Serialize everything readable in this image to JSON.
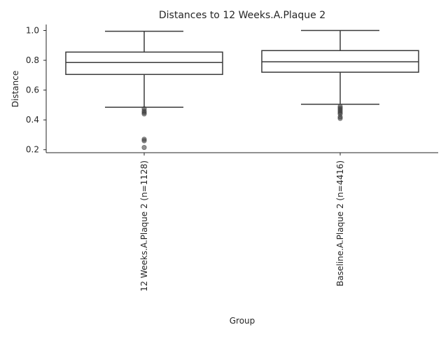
{
  "chart_data": {
    "type": "box",
    "title": "Distances to 12 Weeks.A.Plaque 2",
    "xlabel": "Group",
    "ylabel": "Distance",
    "ylim": [
      0.18,
      1.04
    ],
    "y_ticks": [
      "0.2",
      "0.4",
      "0.6",
      "0.8",
      "1.0"
    ],
    "y_tick_values": [
      0.2,
      0.4,
      0.6,
      0.8,
      1.0
    ],
    "grid": false,
    "categories": [
      "12 Weeks.A.Plaque 2 (n=1128)",
      "Baseline.A.Plaque 2 (n=4416)"
    ],
    "boxes": [
      {
        "whisker_low": 0.485,
        "q1": 0.705,
        "median": 0.785,
        "q3": 0.855,
        "whisker_high": 0.995,
        "outliers": [
          0.475,
          0.46,
          0.45,
          0.44,
          0.27,
          0.26,
          0.215
        ]
      },
      {
        "whisker_low": 0.505,
        "q1": 0.72,
        "median": 0.79,
        "q3": 0.865,
        "whisker_high": 1.0,
        "outliers": [
          0.49,
          0.48,
          0.47,
          0.46,
          0.45,
          0.44,
          0.42,
          0.41
        ]
      }
    ]
  }
}
